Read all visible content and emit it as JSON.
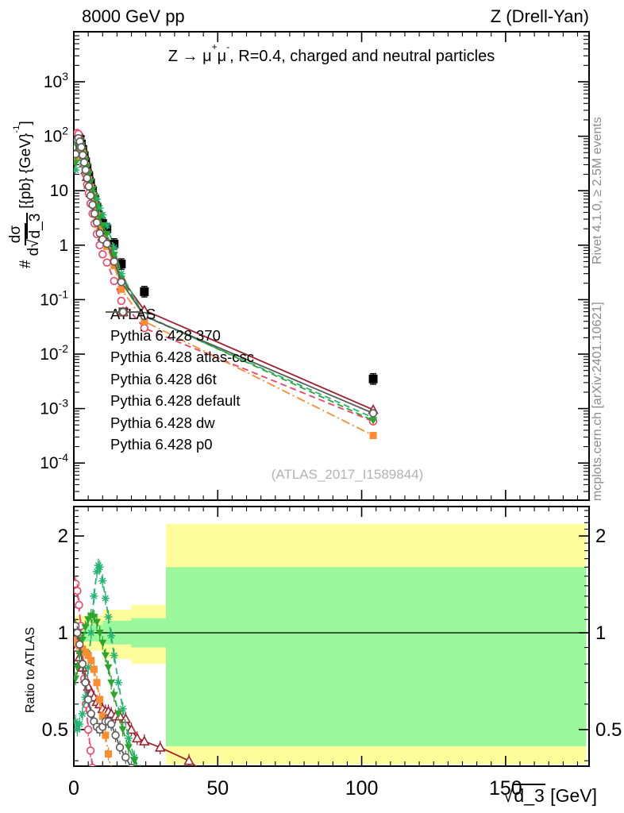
{
  "header": {
    "left": "8000 GeV pp",
    "right": "Z (Drell-Yan)"
  },
  "side_notes": {
    "top_right": "Rivet 4.1.0, ≥ 2.5M events",
    "bottom_right": "mcplots.cern.ch [arXiv:2401.10621]"
  },
  "main_plot": {
    "title_parts": {
      "t1": "Z → μ",
      "t1s": "+",
      "t2": "μ",
      "t2s": "-",
      "t3": ", R=0.4, charged and neutral particles"
    },
    "watermark": "(ATLAS_2017_I1589844)",
    "ylabel": {
      "prefix": "#",
      "numerator": "dσ",
      "den_pre": "d√",
      "den_root": "d_3",
      "unit_pre": "[{pb} {GeV}",
      "unit_sup": "-1",
      "unit_post": "]"
    }
  },
  "ratio_plot": {
    "ylabel": "Ratio to ATLAS"
  },
  "xaxis": {
    "label_parts": {
      "sqrt": "√",
      "root": "d_3",
      "unit": " [GeV]"
    }
  },
  "chart_data": {
    "type": "line",
    "title": "Z -> mu+ mu-, R=0.4, charged and neutral particles",
    "xlabel": "sqrt(d_3) [GeV]",
    "ylabel_main": "# dsigma/d sqrt(d_3) [{pb} {GeV}^-1]",
    "ylabel_ratio": "Ratio to ATLAS",
    "xlim": [
      0,
      179
    ],
    "x_ticks": [
      0,
      50,
      100,
      150
    ],
    "x_minor_step": 5,
    "main_ylog": true,
    "main_y_tick_exponents": [
      3,
      2,
      1,
      0,
      -1,
      -2,
      -3,
      -4
    ],
    "ratio_ylog": true,
    "ratio_ylim": [
      0.386,
      2.46
    ],
    "ratio_y_ticks": [
      0.5,
      1,
      2
    ],
    "data": {
      "name": "ATLAS",
      "color": "#000000",
      "marker": "square-filled-big",
      "yerr_factor": 1.25,
      "points": [
        [
          0.6,
          45
        ],
        [
          1.1,
          85
        ],
        [
          1.6,
          95
        ],
        [
          2.1,
          88
        ],
        [
          2.6,
          72
        ],
        [
          3.1,
          57
        ],
        [
          3.6,
          44
        ],
        [
          4.1,
          34
        ],
        [
          4.6,
          26
        ],
        [
          5.2,
          19
        ],
        [
          5.8,
          14
        ],
        [
          6.5,
          10
        ],
        [
          7.2,
          7.2
        ],
        [
          8,
          5.0
        ],
        [
          9,
          3.3
        ],
        [
          10,
          2.5
        ],
        [
          11.5,
          2.0
        ],
        [
          14,
          1.05
        ],
        [
          16.5,
          0.45
        ],
        [
          24.5,
          0.14
        ],
        [
          104,
          0.0035
        ]
      ]
    },
    "models": [
      {
        "name": "Pythia 6.428 370",
        "color": "#a12030",
        "dash": "solid",
        "marker": "triangle-open",
        "points": [
          [
            0.6,
            43
          ],
          [
            1.1,
            77
          ],
          [
            1.6,
            80
          ],
          [
            2.1,
            74
          ],
          [
            2.6,
            56
          ],
          [
            3.1,
            44
          ],
          [
            3.6,
            32
          ],
          [
            4.1,
            24
          ],
          [
            4.6,
            18
          ],
          [
            5.2,
            13
          ],
          [
            5.8,
            9.1
          ],
          [
            6.5,
            6.3
          ],
          [
            7.2,
            4.5
          ],
          [
            8,
            3.0
          ],
          [
            9,
            2.0
          ],
          [
            10,
            1.45
          ],
          [
            11.5,
            1.14
          ],
          [
            14,
            0.58
          ],
          [
            16.5,
            0.25
          ],
          [
            24.5,
            0.064
          ],
          [
            104,
            0.00095
          ]
        ],
        "ratio": [
          [
            0.6,
            0.95
          ],
          [
            1.1,
            0.9
          ],
          [
            2,
            0.84
          ],
          [
            3,
            0.78
          ],
          [
            4,
            0.72
          ],
          [
            5,
            0.68
          ],
          [
            6,
            0.65
          ],
          [
            7,
            0.63
          ],
          [
            8,
            0.61
          ],
          [
            9,
            0.6
          ],
          [
            10,
            0.58
          ],
          [
            11,
            0.57
          ],
          [
            12,
            0.57
          ],
          [
            13,
            0.56
          ],
          [
            14.5,
            0.55
          ],
          [
            16,
            0.55
          ],
          [
            18,
            0.54
          ],
          [
            20,
            0.5
          ],
          [
            22,
            0.47
          ],
          [
            24.5,
            0.46
          ],
          [
            30,
            0.44
          ],
          [
            40,
            0.4
          ],
          [
            52,
            0.33
          ]
        ]
      },
      {
        "name": "Pythia 6.428 atlas-csc",
        "color": "#ee4266",
        "dash": "dashed",
        "marker": "circle-open",
        "points": [
          [
            0.6,
            64
          ],
          [
            1.1,
            115
          ],
          [
            1.6,
            110
          ],
          [
            2.1,
            88
          ],
          [
            2.6,
            62
          ],
          [
            3.1,
            46
          ],
          [
            3.6,
            30
          ],
          [
            4.1,
            20
          ],
          [
            4.6,
            13
          ],
          [
            5.2,
            9.0
          ],
          [
            5.8,
            5.8
          ],
          [
            6.5,
            3.8
          ],
          [
            7.2,
            2.5
          ],
          [
            8,
            1.6
          ],
          [
            9,
            1.0
          ],
          [
            10,
            0.68
          ],
          [
            11.5,
            0.48
          ],
          [
            14,
            0.22
          ],
          [
            16.5,
            0.095
          ],
          [
            24.5,
            0.03
          ],
          [
            104,
            0.00058
          ]
        ],
        "ratio": [
          [
            0.6,
            1.42
          ],
          [
            1.2,
            1.35
          ],
          [
            1.8,
            1.22
          ],
          [
            2.4,
            1.05
          ],
          [
            3,
            0.88
          ],
          [
            3.6,
            0.72
          ],
          [
            4.2,
            0.6
          ],
          [
            5,
            0.5
          ],
          [
            5.8,
            0.43
          ],
          [
            6.5,
            0.38
          ],
          [
            7.5,
            0.33
          ]
        ]
      },
      {
        "name": "Pythia 6.428 d6t",
        "color": "#22b573",
        "dash": "dashed",
        "marker": "asterisk",
        "points": [
          [
            0.6,
            24
          ],
          [
            1.1,
            43
          ],
          [
            1.6,
            50
          ],
          [
            2.1,
            46
          ],
          [
            2.6,
            39
          ],
          [
            3.1,
            32
          ],
          [
            3.6,
            27
          ],
          [
            4.1,
            22
          ],
          [
            4.6,
            18
          ],
          [
            5.2,
            14.5
          ],
          [
            5.8,
            12
          ],
          [
            6.5,
            10
          ],
          [
            7.2,
            8.4
          ],
          [
            8,
            7.0
          ],
          [
            9,
            4.8
          ],
          [
            10,
            3.6
          ],
          [
            11.5,
            2.3
          ],
          [
            14,
            0.9
          ],
          [
            16.5,
            0.3
          ],
          [
            24.5,
            0.05
          ],
          [
            104,
            0.00068
          ]
        ],
        "ratio": [
          [
            0.6,
            0.53
          ],
          [
            1.2,
            0.5
          ],
          [
            2,
            0.52
          ],
          [
            3,
            0.56
          ],
          [
            4,
            0.63
          ],
          [
            5,
            0.78
          ],
          [
            6,
            1.0
          ],
          [
            7,
            1.3
          ],
          [
            8,
            1.55
          ],
          [
            8.5,
            1.62
          ],
          [
            9,
            1.6
          ],
          [
            10,
            1.45
          ],
          [
            11,
            1.28
          ],
          [
            12,
            1.12
          ],
          [
            13,
            0.98
          ],
          [
            14,
            0.85
          ],
          [
            15.5,
            0.7
          ],
          [
            17,
            0.58
          ],
          [
            19,
            0.47
          ],
          [
            21,
            0.41
          ],
          [
            23,
            0.37
          ],
          [
            25,
            0.33
          ]
        ]
      },
      {
        "name": "Pythia 6.428 default",
        "color": "#fb8c2f",
        "dash": "dashdot",
        "marker": "square-filled",
        "points": [
          [
            0.6,
            42
          ],
          [
            1.1,
            79
          ],
          [
            1.6,
            86
          ],
          [
            2.1,
            78
          ],
          [
            2.6,
            63
          ],
          [
            3.1,
            49
          ],
          [
            3.6,
            38
          ],
          [
            4.1,
            29
          ],
          [
            4.6,
            22
          ],
          [
            5.2,
            16
          ],
          [
            5.8,
            11.5
          ],
          [
            6.5,
            8.1
          ],
          [
            7.2,
            5.5
          ],
          [
            8,
            3.5
          ],
          [
            9,
            2.0
          ],
          [
            10,
            1.35
          ],
          [
            11.5,
            0.95
          ],
          [
            14,
            0.42
          ],
          [
            16.5,
            0.155
          ],
          [
            24.5,
            0.04
          ],
          [
            104,
            0.00032
          ]
        ],
        "ratio": [
          [
            0.6,
            0.95
          ],
          [
            1.2,
            0.93
          ],
          [
            2,
            0.91
          ],
          [
            3,
            0.89
          ],
          [
            4,
            0.87
          ],
          [
            5,
            0.85
          ],
          [
            6,
            0.82
          ],
          [
            7,
            0.77
          ],
          [
            8,
            0.7
          ],
          [
            9,
            0.62
          ],
          [
            10,
            0.55
          ],
          [
            11,
            0.48
          ],
          [
            12,
            0.42
          ],
          [
            13,
            0.37
          ]
        ]
      },
      {
        "name": "Pythia 6.428 dw",
        "color": "#2ca52c",
        "dash": "dashed",
        "marker": "triangle-down-filled",
        "points": [
          [
            0.6,
            32
          ],
          [
            1.1,
            66
          ],
          [
            1.6,
            80
          ],
          [
            2.1,
            82
          ],
          [
            2.6,
            69
          ],
          [
            3.1,
            56
          ],
          [
            3.6,
            45
          ],
          [
            4.1,
            35
          ],
          [
            4.6,
            27
          ],
          [
            5.2,
            20
          ],
          [
            5.8,
            14.5
          ],
          [
            6.5,
            10.5
          ],
          [
            7.2,
            7.6
          ],
          [
            8,
            5.2
          ],
          [
            9,
            3.2
          ],
          [
            10,
            2.3
          ],
          [
            11.5,
            1.6
          ],
          [
            14,
            0.66
          ],
          [
            16.5,
            0.24
          ],
          [
            24.5,
            0.052
          ],
          [
            104,
            0.0006
          ]
        ],
        "ratio": [
          [
            0.6,
            0.72
          ],
          [
            1.2,
            0.78
          ],
          [
            2,
            0.86
          ],
          [
            3,
            0.95
          ],
          [
            4,
            1.04
          ],
          [
            5,
            1.1
          ],
          [
            6,
            1.13
          ],
          [
            7,
            1.12
          ],
          [
            8,
            1.08
          ],
          [
            9,
            1.0
          ],
          [
            10,
            0.93
          ],
          [
            11,
            0.85
          ],
          [
            12,
            0.78
          ],
          [
            13,
            0.7
          ],
          [
            14,
            0.64
          ],
          [
            15.5,
            0.56
          ],
          [
            17,
            0.5
          ],
          [
            19,
            0.44
          ],
          [
            21,
            0.4
          ],
          [
            23,
            0.37
          ]
        ]
      },
      {
        "name": "Pythia 6.428 p0",
        "color": "#5c5c5c",
        "dash": "solid",
        "marker": "circle-open",
        "points": [
          [
            0.6,
            47
          ],
          [
            1.1,
            87
          ],
          [
            1.6,
            92
          ],
          [
            2.1,
            80
          ],
          [
            2.6,
            63
          ],
          [
            3.1,
            45
          ],
          [
            3.6,
            33
          ],
          [
            4.1,
            24
          ],
          [
            4.6,
            17
          ],
          [
            5.2,
            12
          ],
          [
            5.8,
            8.1
          ],
          [
            6.5,
            5.5
          ],
          [
            7.2,
            3.8
          ],
          [
            8,
            2.6
          ],
          [
            9,
            1.65
          ],
          [
            10,
            1.28
          ],
          [
            11.5,
            1.06
          ],
          [
            14,
            0.5
          ],
          [
            16.5,
            0.21
          ],
          [
            24.5,
            0.05
          ],
          [
            104,
            0.00082
          ]
        ],
        "ratio": [
          [
            0.6,
            1.05
          ],
          [
            1.2,
            1.0
          ],
          [
            2,
            0.92
          ],
          [
            3,
            0.8
          ],
          [
            4,
            0.7
          ],
          [
            5,
            0.62
          ],
          [
            6,
            0.56
          ],
          [
            7,
            0.53
          ],
          [
            8,
            0.51
          ],
          [
            9,
            0.5
          ],
          [
            10,
            0.51
          ],
          [
            11,
            0.53
          ],
          [
            12,
            0.53
          ],
          [
            13,
            0.52
          ],
          [
            14.5,
            0.48
          ],
          [
            16,
            0.44
          ],
          [
            18,
            0.41
          ],
          [
            20,
            0.38
          ],
          [
            23,
            0.36
          ],
          [
            26,
            0.36
          ],
          [
            30,
            0.33
          ]
        ]
      }
    ],
    "uncertainty_bands": {
      "yellow": "#fdfd9c",
      "green": "#9bf79b",
      "segments": [
        {
          "x": [
            0,
            10
          ],
          "yellow": [
            0.88,
            1.13
          ],
          "green": [
            0.94,
            1.06
          ]
        },
        {
          "x": [
            10,
            20
          ],
          "yellow": [
            0.83,
            1.18
          ],
          "green": [
            0.92,
            1.09
          ]
        },
        {
          "x": [
            20,
            32
          ],
          "yellow": [
            0.8,
            1.22
          ],
          "green": [
            0.9,
            1.11
          ]
        },
        {
          "x": [
            32,
            178
          ],
          "yellow": [
            0.39,
            2.18
          ],
          "green": [
            0.444,
            1.6
          ]
        }
      ]
    }
  }
}
